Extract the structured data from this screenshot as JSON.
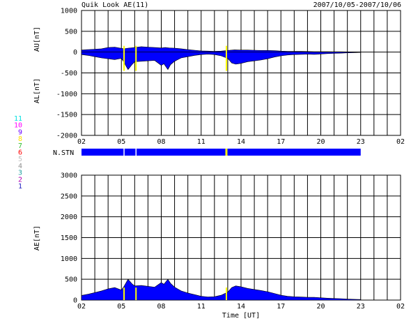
{
  "header": {
    "title": "Quik Look AE(11)",
    "date_range": "2007/10/05-2007/10/06"
  },
  "colors": {
    "trace": "#0000ff",
    "station_bar": "#0000ff",
    "gap_marker": "#ffff00",
    "grid": "#000000"
  },
  "legend_numbers": [
    {
      "label": "11",
      "color": "#00e0e0"
    },
    {
      "label": "10",
      "color": "#ff00ff"
    },
    {
      "label": "9",
      "color": "#6a00ff"
    },
    {
      "label": "8",
      "color": "#ffe000"
    },
    {
      "label": "7",
      "color": "#30c030"
    },
    {
      "label": "6",
      "color": "#ff0000"
    },
    {
      "label": "5",
      "color": "#c0c0c0"
    },
    {
      "label": "4",
      "color": "#909090"
    },
    {
      "label": "3",
      "color": "#20a0a0"
    },
    {
      "label": "2",
      "color": "#b000b0"
    },
    {
      "label": "1",
      "color": "#2020c0"
    }
  ],
  "chart_data": [
    {
      "type": "area",
      "name": "AU/AL",
      "ylabel_top": "AU[nT]",
      "ylabel_bottom": "AL[nT]",
      "ylim": [
        -2000,
        1000
      ],
      "yticks": [
        1000,
        500,
        0,
        -500,
        -1000,
        -1500,
        -2000
      ],
      "xlim": [
        2,
        26
      ],
      "xticks": [
        "02",
        "05",
        "08",
        "11",
        "14",
        "17",
        "20",
        "23",
        "02"
      ],
      "grid": true,
      "series": [
        {
          "name": "AU",
          "x": [
            2.0,
            2.5,
            3.0,
            3.5,
            4.0,
            4.5,
            5.0,
            5.2,
            5.5,
            6.0,
            6.5,
            7.0,
            7.5,
            8.0,
            8.3,
            8.6,
            9.0,
            9.5,
            10.0,
            10.5,
            11.0,
            11.5,
            12.0,
            12.5,
            13.0,
            13.5,
            14.0,
            14.5,
            15.0,
            15.5,
            16.0,
            16.5,
            17.0,
            17.5,
            18.0,
            18.5,
            19.0,
            19.5,
            20.0,
            20.5,
            21.0,
            21.5,
            22.0,
            22.5,
            23.0
          ],
          "values": [
            50,
            60,
            70,
            80,
            110,
            120,
            90,
            80,
            95,
            110,
            130,
            120,
            110,
            100,
            110,
            100,
            95,
            80,
            60,
            45,
            30,
            25,
            20,
            25,
            40,
            55,
            50,
            50,
            45,
            40,
            40,
            35,
            25,
            20,
            18,
            18,
            15,
            12,
            10,
            10,
            8,
            8,
            6,
            6,
            5
          ]
        },
        {
          "name": "AL",
          "x": [
            2.0,
            2.5,
            3.0,
            3.5,
            4.0,
            4.5,
            5.0,
            5.2,
            5.5,
            5.8,
            6.0,
            6.5,
            7.0,
            7.5,
            8.0,
            8.2,
            8.5,
            8.7,
            9.0,
            9.5,
            10.0,
            10.5,
            11.0,
            11.5,
            12.0,
            12.5,
            13.0,
            13.3,
            13.6,
            14.0,
            14.5,
            15.0,
            15.5,
            16.0,
            16.5,
            17.0,
            17.5,
            18.0,
            18.5,
            19.0,
            19.5,
            20.0,
            20.5,
            21.0,
            21.5,
            22.0,
            22.5,
            23.0
          ],
          "values": [
            -60,
            -80,
            -110,
            -140,
            -160,
            -180,
            -150,
            -250,
            -420,
            -300,
            -230,
            -220,
            -210,
            -200,
            -320,
            -280,
            -420,
            -300,
            -220,
            -140,
            -110,
            -80,
            -60,
            -50,
            -60,
            -90,
            -150,
            -260,
            -290,
            -270,
            -230,
            -210,
            -190,
            -160,
            -120,
            -90,
            -70,
            -60,
            -55,
            -50,
            -55,
            -45,
            -35,
            -30,
            -25,
            -18,
            -12,
            -8
          ]
        }
      ]
    },
    {
      "type": "bar",
      "name": "station coverage",
      "ylabel": "N.STN",
      "xlim": [
        2,
        26
      ],
      "segments": [
        {
          "start": 2.0,
          "end": 23.0,
          "value": 11
        }
      ],
      "gaps_hours": [
        5.2,
        6.1,
        12.9
      ]
    },
    {
      "type": "area",
      "name": "AE",
      "ylabel": "AE[nT]",
      "xlabel": "Time [UT]",
      "ylim": [
        0,
        3000
      ],
      "yticks": [
        3000,
        2500,
        2000,
        1500,
        1000,
        500,
        0
      ],
      "xlim": [
        2,
        26
      ],
      "xticks": [
        "02",
        "05",
        "08",
        "11",
        "14",
        "17",
        "20",
        "23",
        "02"
      ],
      "grid": true,
      "series": [
        {
          "name": "AE",
          "x": [
            2.0,
            2.5,
            3.0,
            3.5,
            4.0,
            4.5,
            5.0,
            5.2,
            5.5,
            5.8,
            6.0,
            6.5,
            7.0,
            7.5,
            8.0,
            8.2,
            8.5,
            8.7,
            9.0,
            9.5,
            10.0,
            10.5,
            11.0,
            11.5,
            12.0,
            12.5,
            13.0,
            13.3,
            13.6,
            14.0,
            14.5,
            15.0,
            15.5,
            16.0,
            16.5,
            17.0,
            17.5,
            18.0,
            18.5,
            19.0,
            19.5,
            20.0,
            20.5,
            21.0,
            21.5,
            22.0,
            22.5,
            23.0
          ],
          "values": [
            110,
            140,
            180,
            220,
            270,
            300,
            240,
            330,
            500,
            390,
            340,
            350,
            330,
            310,
            420,
            380,
            500,
            400,
            310,
            220,
            170,
            130,
            90,
            75,
            80,
            115,
            190,
            300,
            340,
            320,
            280,
            255,
            230,
            200,
            160,
            115,
            90,
            78,
            73,
            65,
            67,
            55,
            45,
            38,
            33,
            24,
            18,
            13
          ]
        }
      ]
    }
  ]
}
